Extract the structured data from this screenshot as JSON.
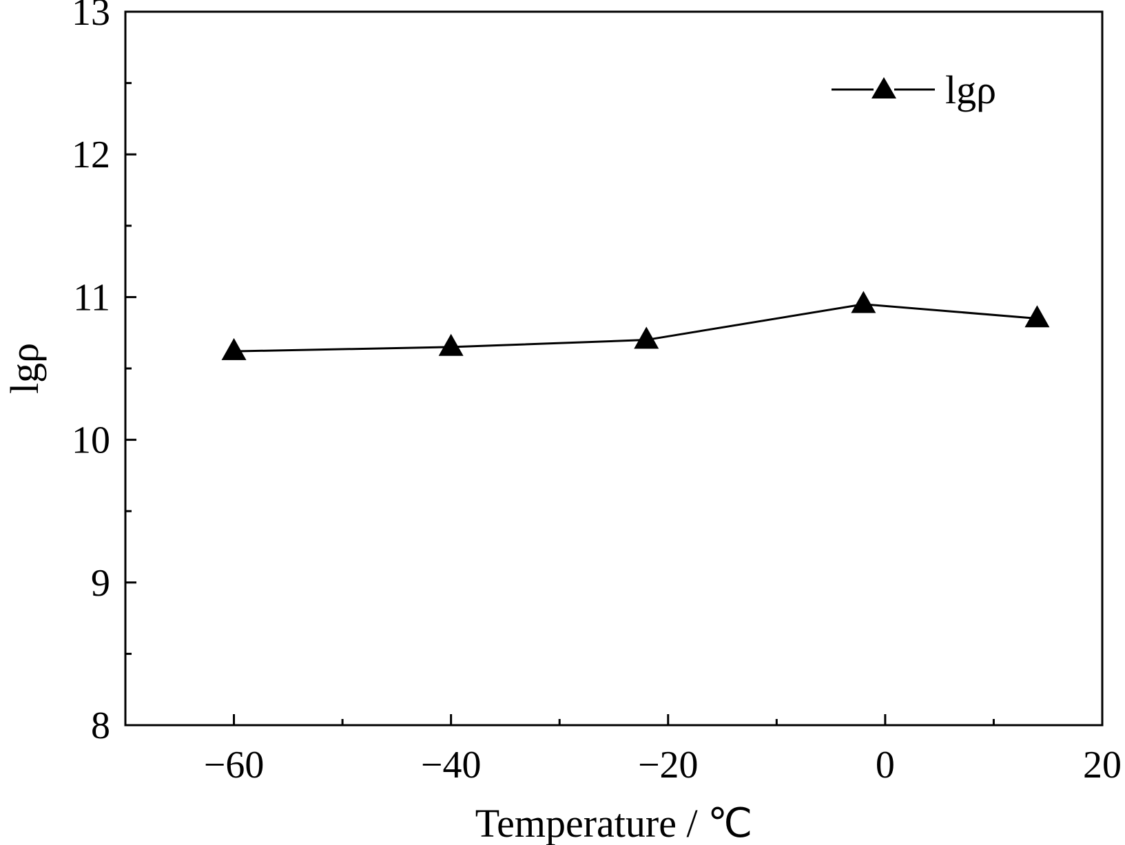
{
  "chart_data": {
    "type": "line",
    "xlabel": "Temperature / ℃",
    "ylabel": "lgρ",
    "xlim": [
      -70,
      20
    ],
    "ylim": [
      8,
      13
    ],
    "x_ticks": [
      -60,
      -40,
      -20,
      0,
      20
    ],
    "x_tick_labels": [
      "−60",
      "−40",
      "−20",
      "0",
      "20"
    ],
    "y_ticks": [
      8,
      9,
      10,
      11,
      12,
      13
    ],
    "y_tick_labels": [
      "8",
      "9",
      "10",
      "11",
      "12",
      "13"
    ],
    "grid": false,
    "legend_position": "top-right",
    "series": [
      {
        "name": "lgρ",
        "color": "#000000",
        "marker": "triangle",
        "x": [
          -60,
          -40,
          -22,
          -2,
          14
        ],
        "y": [
          10.62,
          10.65,
          10.7,
          10.95,
          10.85
        ]
      }
    ]
  }
}
